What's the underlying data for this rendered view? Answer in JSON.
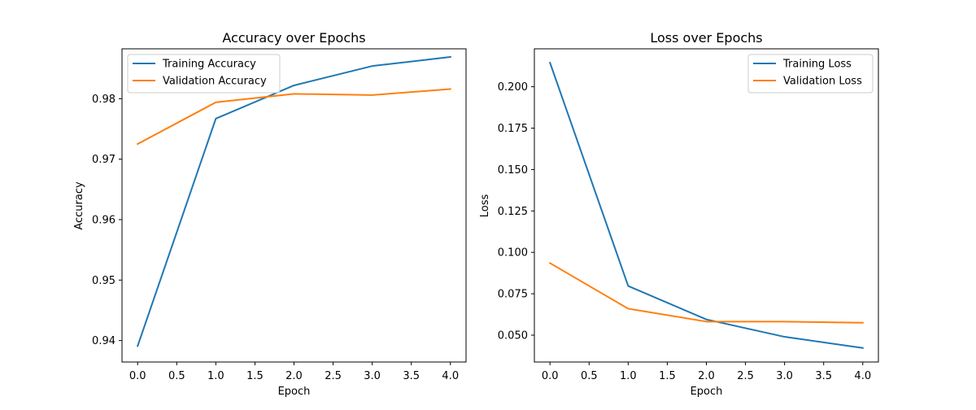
{
  "chart_data": [
    {
      "type": "line",
      "title": "Accuracy over Epochs",
      "xlabel": "Epoch",
      "ylabel": "Accuracy",
      "x": [
        0,
        1,
        2,
        3,
        4
      ],
      "xlim": [
        -0.2,
        4.2
      ],
      "ylim": [
        0.93645,
        0.98825
      ],
      "xticks": [
        0.0,
        0.5,
        1.0,
        1.5,
        2.0,
        2.5,
        3.0,
        3.5,
        4.0
      ],
      "xtick_labels": [
        "0.0",
        "0.5",
        "1.0",
        "1.5",
        "2.0",
        "2.5",
        "3.0",
        "3.5",
        "4.0"
      ],
      "yticks": [
        0.94,
        0.95,
        0.96,
        0.97,
        0.98
      ],
      "ytick_labels": [
        "0.94",
        "0.95",
        "0.96",
        "0.97",
        "0.98"
      ],
      "grid": false,
      "legend_position": "upper-left",
      "series": [
        {
          "name": "Training Accuracy",
          "color": "#1f77b4",
          "values": [
            0.9391,
            0.9767,
            0.9822,
            0.9854,
            0.9869
          ]
        },
        {
          "name": "Validation Accuracy",
          "color": "#ff7f0e",
          "values": [
            0.9725,
            0.9794,
            0.9808,
            0.9806,
            0.9816
          ]
        }
      ]
    },
    {
      "type": "line",
      "title": "Loss over Epochs",
      "xlabel": "Epoch",
      "ylabel": "Loss",
      "x": [
        0,
        1,
        2,
        3,
        4
      ],
      "xlim": [
        -0.2,
        4.2
      ],
      "ylim": [
        0.0338,
        0.2229
      ],
      "xticks": [
        0.0,
        0.5,
        1.0,
        1.5,
        2.0,
        2.5,
        3.0,
        3.5,
        4.0
      ],
      "xtick_labels": [
        "0.0",
        "0.5",
        "1.0",
        "1.5",
        "2.0",
        "2.5",
        "3.0",
        "3.5",
        "4.0"
      ],
      "yticks": [
        0.05,
        0.075,
        0.1,
        0.125,
        0.15,
        0.175,
        0.2
      ],
      "ytick_labels": [
        "0.050",
        "0.075",
        "0.100",
        "0.125",
        "0.150",
        "0.175",
        "0.200"
      ],
      "grid": false,
      "legend_position": "upper-right",
      "series": [
        {
          "name": "Training Loss",
          "color": "#1f77b4",
          "values": [
            0.2145,
            0.0797,
            0.0595,
            0.049,
            0.0423
          ]
        },
        {
          "name": "Validation Loss",
          "color": "#ff7f0e",
          "values": [
            0.0935,
            0.066,
            0.0582,
            0.0582,
            0.0575
          ]
        }
      ]
    }
  ]
}
